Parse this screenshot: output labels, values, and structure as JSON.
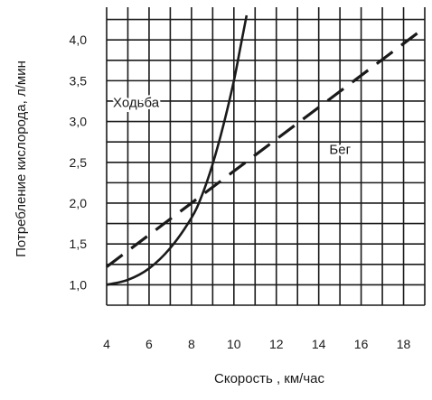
{
  "chart_data": {
    "type": "line",
    "xlabel": "Скорость , км/час",
    "ylabel": "Потребление кислорода, л/мин",
    "xlim": [
      4,
      19
    ],
    "ylim": [
      0.75,
      4.4
    ],
    "x_ticks": [
      4,
      6,
      8,
      10,
      12,
      14,
      16,
      18
    ],
    "x_tick_labels": [
      "4",
      "6",
      "8",
      "10",
      "12",
      "14",
      "16",
      "18"
    ],
    "y_ticks": [
      1.0,
      1.5,
      2.0,
      2.5,
      3.0,
      3.5,
      4.0
    ],
    "y_tick_labels": [
      "1,0",
      "1,5",
      "2,0",
      "2,5",
      "3,0",
      "3,5",
      "4,0"
    ],
    "grid": true,
    "series": [
      {
        "name": "Ходьба",
        "style": "solid",
        "x": [
          4,
          5,
          6,
          7,
          8,
          8.5,
          9,
          9.5,
          10,
          10.3,
          10.6
        ],
        "y": [
          1.0,
          1.06,
          1.2,
          1.45,
          1.82,
          2.1,
          2.48,
          2.95,
          3.5,
          3.9,
          4.3
        ]
      },
      {
        "name": "Бег",
        "style": "dashed",
        "x": [
          4,
          19
        ],
        "y": [
          1.22,
          4.15
        ]
      }
    ],
    "annotations": [
      {
        "text": "Ходьба",
        "x": 4.3,
        "y": 3.18
      },
      {
        "text": "Бег",
        "x": 14.5,
        "y": 2.6
      }
    ],
    "colors": {
      "line": "#1a1a1a",
      "grid": "#1a1a1a"
    }
  }
}
